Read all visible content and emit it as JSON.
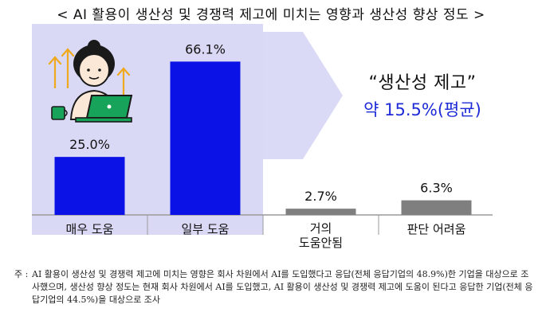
{
  "title": "< AI 활용이 생산성 및 경쟁력 제고에 미치는 영향과 생산성 향상 정도 >",
  "chart_data": {
    "type": "bar",
    "categories": [
      "매우 도움",
      "일부 도움",
      "거의\n도움안됨",
      "판단 어려움"
    ],
    "values": [
      25.0,
      66.1,
      2.7,
      6.3
    ],
    "value_labels": [
      "25.0%",
      "66.1%",
      "2.7%",
      "6.3%"
    ],
    "colors": [
      "#0b12e6",
      "#0b12e6",
      "#7f7f7f",
      "#7f7f7f"
    ],
    "highlight_bg": "#d9d9f5",
    "ylim": [
      0,
      70
    ],
    "grid": false,
    "legend": "none"
  },
  "callout": {
    "main": "“생산성 제고”",
    "sub": "약 15.5%(평균)"
  },
  "footnote": {
    "lead": "주 :",
    "text": "AI 활용이 생산성 및 경쟁력 제고에 미치는 영향은 회사 차원에서 AI를 도입했다고 응답(전체 응답기업의 48.9%)한 기업을 대상으로 조사했으며, 생산성 향상 정도는 현재 회사 차원에서 AI를 도입했고, AI 활용이 생산성 및 경쟁력 제고에 도움이 된다고 응답한 기업(전체 응답기업의 44.5%)을 대상으로 조사"
  },
  "icon": "person-laptop-growth-icon"
}
